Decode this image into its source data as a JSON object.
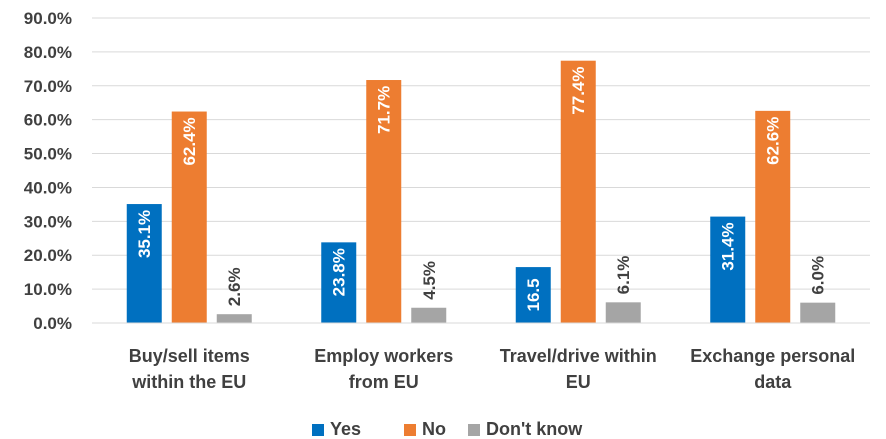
{
  "chart_data": {
    "type": "bar",
    "categories": [
      [
        "Buy/sell items",
        "within the EU"
      ],
      [
        "Employ workers",
        "from EU"
      ],
      [
        "Travel/drive within",
        "EU"
      ],
      [
        "Exchange personal",
        "data"
      ]
    ],
    "series": [
      {
        "name": "Yes",
        "color": "#0070c0",
        "values": [
          35.1,
          23.8,
          16.5,
          31.4
        ],
        "labels": [
          "35.1%",
          "23.8%",
          "16.5",
          "31.4%"
        ],
        "label_color": "#ffffff"
      },
      {
        "name": "No",
        "color": "#ed7d31",
        "values": [
          62.4,
          71.7,
          77.4,
          62.6
        ],
        "labels": [
          "62.4%",
          "71.7%",
          "77.4%",
          "62.6%"
        ],
        "label_color": "#ffffff"
      },
      {
        "name": "Don't know",
        "color": "#a5a5a5",
        "values": [
          2.6,
          4.5,
          6.1,
          6.0
        ],
        "labels": [
          "2.6%",
          "4.5%",
          "6.1%",
          "6.0%"
        ],
        "label_color": "#404040"
      }
    ],
    "ylim": [
      0,
      90
    ],
    "yticks": [
      "0.0%",
      "10.0%",
      "20.0%",
      "30.0%",
      "40.0%",
      "50.0%",
      "60.0%",
      "70.0%",
      "80.0%",
      "90.0%"
    ],
    "grid": true,
    "legend": "bottom"
  }
}
